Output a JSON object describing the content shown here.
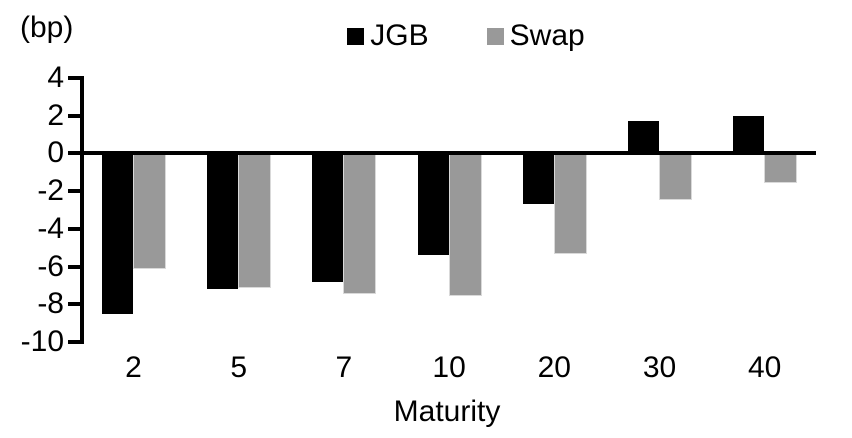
{
  "chart": {
    "unit_label": "(bp)",
    "xaxis_title": "Maturity"
  },
  "chart_data": {
    "type": "bar",
    "title": "",
    "unit_label": "(bp)",
    "categories": [
      "2",
      "5",
      "7",
      "10",
      "20",
      "30",
      "40"
    ],
    "series": [
      {
        "name": "JGB",
        "color": "#000000",
        "values": [
          -8.5,
          -7.2,
          -6.8,
          -5.4,
          -2.7,
          1.7,
          2.0
        ]
      },
      {
        "name": "Swap",
        "color": "#999999",
        "values": [
          -6.1,
          -7.1,
          -7.4,
          -7.5,
          -5.3,
          -2.4,
          -1.5
        ]
      }
    ],
    "xlabel": "Maturity",
    "ylabel": "(bp)",
    "ylim": [
      -10,
      4
    ],
    "yticks": [
      4,
      2,
      0,
      -2,
      -4,
      -6,
      -8,
      -10
    ],
    "legend_position": "top-center",
    "grid": false,
    "background": "#ffffff",
    "axis_color": "#000000"
  }
}
